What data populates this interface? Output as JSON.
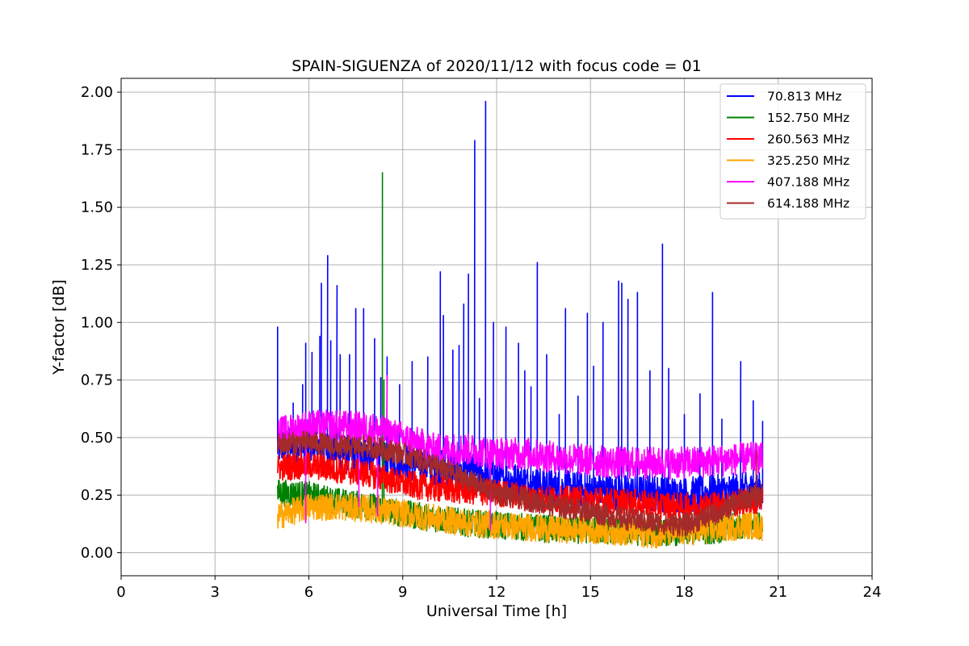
{
  "chart_data": {
    "type": "line",
    "title": "SPAIN-SIGUENZA of 2020/11/12 with focus code = 01",
    "xlabel": "Universal Time [h]",
    "ylabel": "Y-factor [dB]",
    "xlim": [
      0,
      24
    ],
    "ylim": [
      -0.1,
      2.06
    ],
    "xticks": [
      0,
      3,
      6,
      9,
      12,
      15,
      18,
      21,
      24
    ],
    "yticks": [
      "0.00",
      "0.25",
      "0.50",
      "0.75",
      "1.00",
      "1.25",
      "1.50",
      "1.75",
      "2.00"
    ],
    "grid": true,
    "legend_position": "top-right",
    "series": [
      {
        "name": " 70.813 MHz",
        "color": "#0000ff",
        "trend": [
          [
            5.0,
            0.46
          ],
          [
            6.0,
            0.47
          ],
          [
            7.0,
            0.44
          ],
          [
            8.0,
            0.42
          ],
          [
            9.0,
            0.4
          ],
          [
            10.0,
            0.37
          ],
          [
            11.0,
            0.36
          ],
          [
            12.0,
            0.33
          ],
          [
            13.0,
            0.3
          ],
          [
            14.0,
            0.28
          ],
          [
            15.0,
            0.27
          ],
          [
            16.0,
            0.26
          ],
          [
            17.0,
            0.26
          ],
          [
            18.0,
            0.25
          ],
          [
            19.0,
            0.26
          ],
          [
            20.0,
            0.27
          ],
          [
            20.5,
            0.27
          ]
        ],
        "noise": 0.08,
        "spikes": [
          [
            5.0,
            0.98
          ],
          [
            5.5,
            0.65
          ],
          [
            5.8,
            0.73
          ],
          [
            5.9,
            0.91
          ],
          [
            6.1,
            0.87
          ],
          [
            6.35,
            0.94
          ],
          [
            6.4,
            1.17
          ],
          [
            6.6,
            1.29
          ],
          [
            6.7,
            0.92
          ],
          [
            6.9,
            1.16
          ],
          [
            7.0,
            0.86
          ],
          [
            7.3,
            0.86
          ],
          [
            7.5,
            1.06
          ],
          [
            7.75,
            1.06
          ],
          [
            8.1,
            0.93
          ],
          [
            8.3,
            0.76
          ],
          [
            8.5,
            0.85
          ],
          [
            8.9,
            0.73
          ],
          [
            9.3,
            0.83
          ],
          [
            9.8,
            0.85
          ],
          [
            10.2,
            1.22
          ],
          [
            10.3,
            1.03
          ],
          [
            10.6,
            0.88
          ],
          [
            10.8,
            0.9
          ],
          [
            10.95,
            1.08
          ],
          [
            11.1,
            1.21
          ],
          [
            11.3,
            1.79
          ],
          [
            11.45,
            0.67
          ],
          [
            11.65,
            1.96
          ],
          [
            11.9,
            1.0
          ],
          [
            12.3,
            0.98
          ],
          [
            12.7,
            0.91
          ],
          [
            12.9,
            0.79
          ],
          [
            13.1,
            0.72
          ],
          [
            13.3,
            1.26
          ],
          [
            13.6,
            0.86
          ],
          [
            14.0,
            0.6
          ],
          [
            14.2,
            1.06
          ],
          [
            14.6,
            0.68
          ],
          [
            14.9,
            1.04
          ],
          [
            15.1,
            0.81
          ],
          [
            15.4,
            1.0
          ],
          [
            15.9,
            1.18
          ],
          [
            16.0,
            1.17
          ],
          [
            16.2,
            1.1
          ],
          [
            16.5,
            1.13
          ],
          [
            16.9,
            0.79
          ],
          [
            17.3,
            1.34
          ],
          [
            17.5,
            0.8
          ],
          [
            18.0,
            0.6
          ],
          [
            18.5,
            0.69
          ],
          [
            18.9,
            1.13
          ],
          [
            19.2,
            0.58
          ],
          [
            19.8,
            0.83
          ],
          [
            20.2,
            0.66
          ],
          [
            20.5,
            0.57
          ]
        ]
      },
      {
        "name": "152.750 MHz",
        "color": "#008000",
        "trend": [
          [
            5.0,
            0.26
          ],
          [
            6.0,
            0.25
          ],
          [
            7.0,
            0.22
          ],
          [
            8.0,
            0.2
          ],
          [
            9.0,
            0.17
          ],
          [
            10.0,
            0.15
          ],
          [
            11.0,
            0.13
          ],
          [
            12.0,
            0.12
          ],
          [
            13.0,
            0.11
          ],
          [
            14.0,
            0.1
          ],
          [
            15.0,
            0.1
          ],
          [
            16.0,
            0.09
          ],
          [
            17.0,
            0.09
          ],
          [
            18.0,
            0.09
          ],
          [
            19.0,
            0.1
          ],
          [
            20.0,
            0.12
          ],
          [
            20.5,
            0.12
          ]
        ],
        "noise": 0.06,
        "spikes": [
          [
            8.35,
            1.65
          ],
          [
            8.4,
            0.75
          ]
        ]
      },
      {
        "name": "260.563 MHz",
        "color": "#ff0000",
        "trend": [
          [
            5.0,
            0.37
          ],
          [
            6.0,
            0.38
          ],
          [
            7.0,
            0.36
          ],
          [
            8.0,
            0.34
          ],
          [
            9.0,
            0.3
          ],
          [
            10.0,
            0.28
          ],
          [
            11.0,
            0.27
          ],
          [
            12.0,
            0.26
          ],
          [
            13.0,
            0.24
          ],
          [
            14.0,
            0.23
          ],
          [
            15.0,
            0.23
          ],
          [
            16.0,
            0.22
          ],
          [
            17.0,
            0.21
          ],
          [
            18.0,
            0.2
          ],
          [
            19.0,
            0.21
          ],
          [
            20.0,
            0.22
          ],
          [
            20.5,
            0.22
          ]
        ],
        "noise": 0.06,
        "spikes": []
      },
      {
        "name": "325.250 MHz",
        "color": "#ffa500",
        "trend": [
          [
            5.0,
            0.16
          ],
          [
            6.0,
            0.2
          ],
          [
            7.0,
            0.2
          ],
          [
            8.0,
            0.19
          ],
          [
            9.0,
            0.17
          ],
          [
            10.0,
            0.15
          ],
          [
            11.0,
            0.13
          ],
          [
            12.0,
            0.12
          ],
          [
            13.0,
            0.11
          ],
          [
            14.0,
            0.1
          ],
          [
            15.0,
            0.1
          ],
          [
            16.0,
            0.09
          ],
          [
            17.0,
            0.08
          ],
          [
            18.0,
            0.09
          ],
          [
            19.0,
            0.1
          ],
          [
            20.0,
            0.12
          ],
          [
            20.5,
            0.11
          ]
        ],
        "noise": 0.06,
        "spikes": []
      },
      {
        "name": "407.188 MHz",
        "color": "#ff00ff",
        "trend": [
          [
            5.0,
            0.52
          ],
          [
            6.0,
            0.55
          ],
          [
            7.0,
            0.55
          ],
          [
            8.0,
            0.54
          ],
          [
            9.0,
            0.5
          ],
          [
            10.0,
            0.45
          ],
          [
            11.0,
            0.45
          ],
          [
            12.0,
            0.43
          ],
          [
            13.0,
            0.43
          ],
          [
            14.0,
            0.41
          ],
          [
            15.0,
            0.4
          ],
          [
            16.0,
            0.39
          ],
          [
            17.0,
            0.39
          ],
          [
            18.0,
            0.39
          ],
          [
            19.0,
            0.4
          ],
          [
            20.0,
            0.41
          ],
          [
            20.5,
            0.41
          ]
        ],
        "noise": 0.07,
        "spikes": [
          [
            5.9,
            0.13
          ],
          [
            7.6,
            0.2
          ],
          [
            8.2,
            0.16
          ],
          [
            8.5,
            0.77
          ],
          [
            11.8,
            0.1
          ]
        ]
      },
      {
        "name": "614.188 MHz",
        "color": "#a52a2a",
        "trend": [
          [
            5.0,
            0.47
          ],
          [
            6.0,
            0.48
          ],
          [
            7.0,
            0.46
          ],
          [
            8.0,
            0.46
          ],
          [
            9.0,
            0.43
          ],
          [
            10.0,
            0.38
          ],
          [
            11.0,
            0.32
          ],
          [
            12.0,
            0.26
          ],
          [
            13.0,
            0.23
          ],
          [
            14.0,
            0.2
          ],
          [
            15.0,
            0.18
          ],
          [
            16.0,
            0.15
          ],
          [
            17.0,
            0.13
          ],
          [
            18.0,
            0.12
          ],
          [
            19.0,
            0.17
          ],
          [
            20.0,
            0.24
          ],
          [
            20.5,
            0.25
          ]
        ],
        "noise": 0.05,
        "spikes": [
          [
            20.3,
            0.44
          ]
        ]
      }
    ]
  }
}
